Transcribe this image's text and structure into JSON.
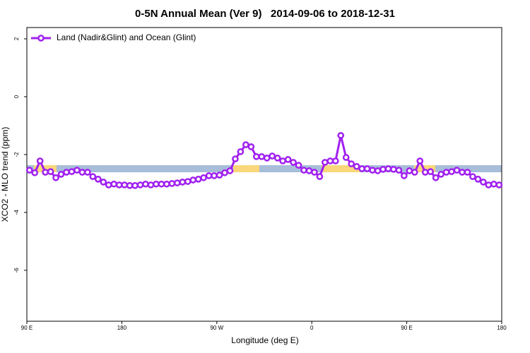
{
  "chart_data": {
    "type": "line",
    "title": "0-5N Annual Mean (Ver 9)   2014-09-06 to 2018-12-31",
    "x_label": "Longitude (deg E)",
    "y_label": "XCO2 - MLO trend (ppm)",
    "xlim": [
      90,
      540
    ],
    "ylim": [
      -7.76,
      2.39
    ],
    "xticks": [
      {
        "value": 90,
        "label": "90 E"
      },
      180,
      {
        "value": 270,
        "label": "90 W"
      },
      {
        "value": 360,
        "label": "0"
      },
      {
        "value": 450,
        "label": "90 E"
      },
      {
        "value": 540,
        "label": "180"
      }
    ],
    "yticks": [
      2,
      0,
      -2,
      -4,
      -6
    ],
    "legend": "top-left",
    "x": [
      92.5,
      97.5,
      102.5,
      107.5,
      112.5,
      117.5,
      122.5,
      127.5,
      132.5,
      137.5,
      142.5,
      147.5,
      152.5,
      157.5,
      162.5,
      167.5,
      172.5,
      177.5,
      182.5,
      187.5,
      192.5,
      197.5,
      202.5,
      207.5,
      212.5,
      217.5,
      222.5,
      227.5,
      232.5,
      237.5,
      242.5,
      247.5,
      252.5,
      257.5,
      262.5,
      267.5,
      272.5,
      277.5,
      282.5,
      287.5,
      292.5,
      297.5,
      302.5,
      307.5,
      312.5,
      317.5,
      322.5,
      327.5,
      332.5,
      337.5,
      342.5,
      347.5,
      352.5,
      357.5,
      362.5,
      367.5,
      372.5,
      377.5,
      382.5,
      387.5,
      392.5,
      397.5,
      402.5,
      407.5,
      412.5,
      417.5,
      422.5,
      427.5,
      432.5,
      437.5,
      442.5,
      447.5,
      452.5,
      457.5,
      462.5,
      467.5,
      472.5,
      477.5,
      482.5,
      487.5,
      492.5,
      497.5,
      502.5,
      507.5,
      512.5,
      517.5,
      522.5,
      527.5,
      532.5,
      537.5
    ],
    "series": [
      {
        "name": "Land (Nadir&Glint) and Ocean (Glint)",
        "color": "#a020f0",
        "values": [
          -2.54,
          -2.63,
          -2.22,
          -2.61,
          -2.59,
          -2.8,
          -2.68,
          -2.61,
          -2.59,
          -2.54,
          -2.61,
          -2.61,
          -2.76,
          -2.85,
          -2.95,
          -3.05,
          -3.02,
          -3.05,
          -3.05,
          -3.07,
          -3.07,
          -3.05,
          -3.02,
          -3.05,
          -3.02,
          -3.02,
          -3.02,
          -3.0,
          -2.98,
          -2.95,
          -2.93,
          -2.88,
          -2.85,
          -2.8,
          -2.73,
          -2.73,
          -2.71,
          -2.63,
          -2.56,
          -2.15,
          -1.9,
          -1.66,
          -1.73,
          -2.07,
          -2.07,
          -2.12,
          -2.05,
          -2.12,
          -2.22,
          -2.17,
          -2.27,
          -2.37,
          -2.54,
          -2.56,
          -2.61,
          -2.76,
          -2.27,
          -2.22,
          -2.22,
          -1.34,
          -2.1,
          -2.32,
          -2.41,
          -2.49,
          -2.49,
          -2.54,
          -2.56,
          -2.51,
          -2.49,
          -2.51,
          -2.54,
          -2.73,
          -2.56,
          -2.61,
          -2.22,
          -2.61,
          -2.59,
          -2.8,
          -2.68,
          -2.61,
          -2.59,
          -2.54,
          -2.61,
          -2.61,
          -2.76,
          -2.85,
          -2.95,
          -3.05,
          -3.02,
          -3.05
        ]
      }
    ]
  }
}
